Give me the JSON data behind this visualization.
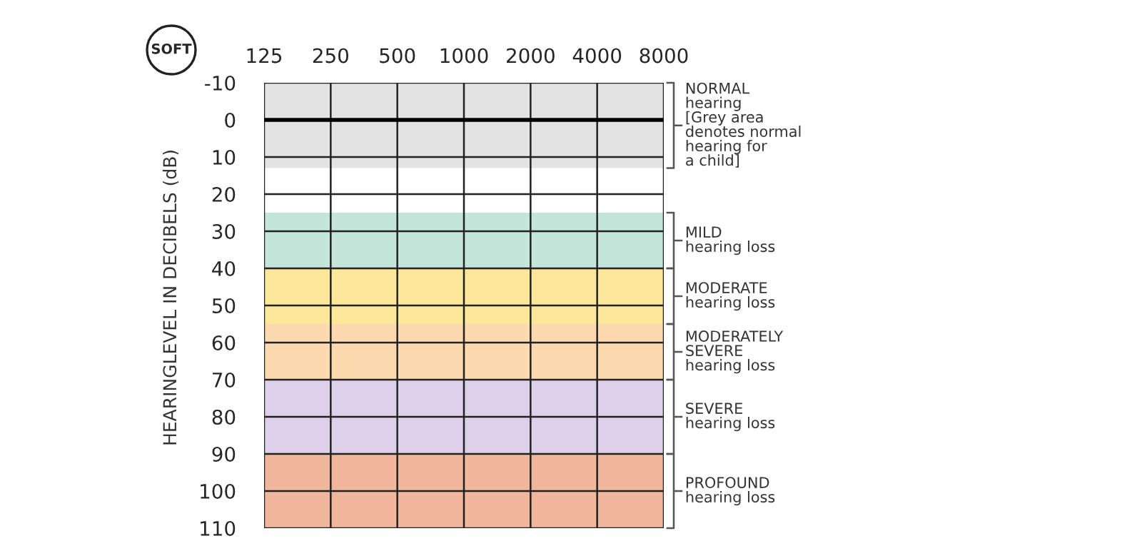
{
  "chart_data": {
    "type": "line",
    "categories": [
      "125",
      "250",
      "500",
      "1000",
      "2000",
      "4000",
      "8000"
    ],
    "ylabel": "HEARINGLEVEL IN DECIBELS (dB)",
    "ylim": [
      110,
      -10
    ],
    "yticks": [
      -10,
      0,
      10,
      20,
      30,
      40,
      50,
      60,
      70,
      80,
      90,
      100,
      110
    ],
    "grid": true,
    "ref_lines": [
      {
        "axis": "y",
        "value": 0,
        "color": "#000000"
      }
    ],
    "bands": [
      {
        "axis": "y",
        "from": -10,
        "to": 13,
        "color": "#e3e3e3",
        "label": "NORMAL\nhearing\n[Grey area\ndenotes normal\nhearing for\na child]"
      },
      {
        "axis": "y",
        "from": 25,
        "to": 40,
        "color": "#c4e6da",
        "label": "MILD\nhearing loss"
      },
      {
        "axis": "y",
        "from": 40,
        "to": 55,
        "color": "#fde79a",
        "label": "MODERATE\nhearing loss"
      },
      {
        "axis": "y",
        "from": 55,
        "to": 70,
        "color": "#fcd9ae",
        "label": "MODERATELY\nSEVERE\nhearing loss"
      },
      {
        "axis": "y",
        "from": 70,
        "to": 90,
        "color": "#ddd0ea",
        "label": "SEVERE\nhearing loss"
      },
      {
        "axis": "y",
        "from": 90,
        "to": 110,
        "color": "#f0b79d",
        "label": "PROFOUND\nhearing loss"
      }
    ],
    "annotations": [
      "SOFT"
    ]
  }
}
